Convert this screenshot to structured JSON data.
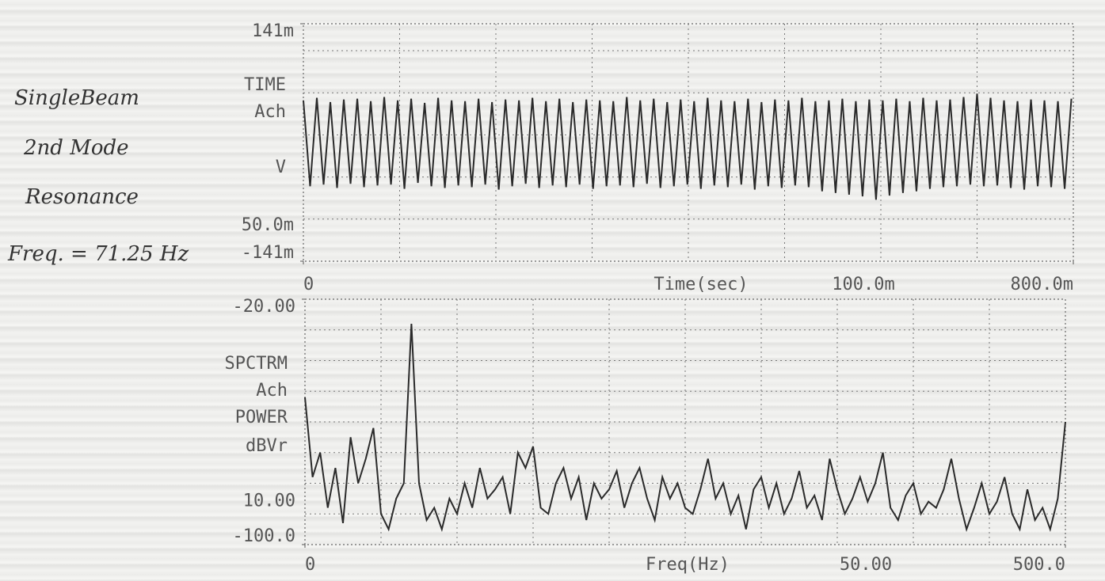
{
  "chart_data": [
    {
      "type": "line",
      "annotations": [
        "SingleBeam",
        "2nd Mode",
        "Resonance",
        "Freq. = 71.25 Hz"
      ],
      "y_labels": [
        "TIME",
        "Ach",
        "V"
      ],
      "x_label": "Time(sec)",
      "x_division": {
        "value": 0.1,
        "label": "100.0m"
      },
      "y_division": {
        "value": 0.05,
        "label": "50.0m"
      },
      "xlim": [
        0,
        0.8
      ],
      "ylim": [
        -0.141,
        0.141
      ],
      "xticks": [
        0,
        {
          "value": 0.8,
          "label": "800.0m"
        }
      ],
      "yticks": [
        {
          "value": 0.141,
          "label": "141m"
        },
        {
          "value": -0.141,
          "label": "-141m"
        }
      ],
      "grid": true,
      "series": [
        {
          "color": "#2a2a2a",
          "x": [
            0,
            0.007,
            0.014,
            0.021,
            0.028,
            0.035,
            0.042,
            0.049,
            0.056,
            0.063,
            0.07,
            0.077,
            0.084,
            0.091,
            0.098,
            0.105,
            0.112,
            0.119,
            0.126,
            0.133,
            0.14,
            0.147,
            0.154,
            0.161,
            0.168,
            0.175,
            0.182,
            0.189,
            0.196,
            0.203,
            0.21,
            0.217,
            0.224,
            0.231,
            0.238,
            0.245,
            0.252,
            0.259,
            0.266,
            0.273,
            0.28,
            0.287,
            0.294,
            0.301,
            0.308,
            0.315,
            0.322,
            0.329,
            0.336,
            0.343,
            0.35,
            0.357,
            0.364,
            0.371,
            0.378,
            0.385,
            0.392,
            0.399,
            0.406,
            0.413,
            0.42,
            0.427,
            0.434,
            0.441,
            0.448,
            0.455,
            0.462,
            0.469,
            0.476,
            0.483,
            0.49,
            0.497,
            0.504,
            0.511,
            0.518,
            0.525,
            0.532,
            0.539,
            0.546,
            0.553,
            0.56,
            0.567,
            0.574,
            0.581,
            0.588,
            0.595,
            0.602,
            0.609,
            0.616,
            0.623,
            0.63,
            0.637,
            0.644,
            0.651,
            0.658,
            0.665,
            0.672,
            0.679,
            0.686,
            0.693,
            0.7,
            0.707,
            0.714,
            0.721,
            0.728,
            0.735,
            0.742,
            0.749,
            0.756,
            0.763,
            0.77,
            0.777,
            0.784,
            0.791,
            0.798
          ],
          "values": [
            0.05,
            -0.052,
            0.053,
            -0.05,
            0.048,
            -0.054,
            0.051,
            -0.049,
            0.052,
            -0.053,
            0.049,
            -0.051,
            0.054,
            -0.05,
            0.05,
            -0.055,
            0.052,
            -0.048,
            0.047,
            -0.052,
            0.053,
            -0.054,
            0.05,
            -0.051,
            0.049,
            -0.053,
            0.052,
            -0.05,
            0.048,
            -0.056,
            0.051,
            -0.052,
            0.05,
            -0.049,
            0.053,
            -0.054,
            0.049,
            -0.051,
            0.052,
            -0.053,
            0.048,
            -0.05,
            0.051,
            -0.055,
            0.05,
            -0.052,
            0.049,
            -0.051,
            0.054,
            -0.053,
            0.05,
            -0.049,
            0.052,
            -0.054,
            0.048,
            -0.052,
            0.051,
            -0.05,
            0.049,
            -0.055,
            0.053,
            -0.051,
            0.05,
            -0.053,
            0.049,
            -0.05,
            0.052,
            -0.056,
            0.048,
            -0.052,
            0.051,
            -0.054,
            0.05,
            -0.051,
            0.053,
            -0.053,
            0.049,
            -0.058,
            0.05,
            -0.06,
            0.052,
            -0.062,
            0.049,
            -0.064,
            0.051,
            -0.068,
            0.05,
            -0.063,
            0.052,
            -0.06,
            0.049,
            -0.058,
            0.053,
            -0.055,
            0.05,
            -0.053,
            0.051,
            -0.052,
            0.054,
            -0.05,
            0.058,
            -0.052,
            0.053,
            -0.051,
            0.05,
            -0.054,
            0.049,
            -0.056,
            0.051,
            -0.052,
            0.05,
            -0.053,
            0.049,
            -0.055,
            0.052
          ]
        }
      ]
    },
    {
      "type": "line",
      "y_labels": [
        "SPCTRM",
        "Ach",
        "POWER",
        "dBVr"
      ],
      "x_label": "Freq(Hz)",
      "x_division": {
        "value": 50,
        "label": "50.00"
      },
      "y_division": {
        "value": 10,
        "label": "10.00"
      },
      "xlim": [
        0,
        500
      ],
      "ylim": [
        -100,
        -20
      ],
      "xticks": [
        0,
        {
          "value": 500,
          "label": "500.0"
        }
      ],
      "yticks": [
        {
          "value": -20,
          "label": "-20.00"
        },
        {
          "value": -100,
          "label": "-100.0"
        }
      ],
      "grid": true,
      "series": [
        {
          "color": "#2a2a2a",
          "x": [
            0,
            5,
            10,
            15,
            20,
            25,
            30,
            35,
            40,
            45,
            50,
            55,
            60,
            65,
            70,
            75,
            80,
            85,
            90,
            95,
            100,
            105,
            110,
            115,
            120,
            125,
            130,
            135,
            140,
            145,
            150,
            155,
            160,
            165,
            170,
            175,
            180,
            185,
            190,
            195,
            200,
            205,
            210,
            215,
            220,
            225,
            230,
            235,
            240,
            245,
            250,
            255,
            260,
            265,
            270,
            275,
            280,
            285,
            290,
            295,
            300,
            305,
            310,
            315,
            320,
            325,
            330,
            335,
            340,
            345,
            350,
            355,
            360,
            365,
            370,
            375,
            380,
            385,
            390,
            395,
            400,
            405,
            410,
            415,
            420,
            425,
            430,
            435,
            440,
            445,
            450,
            455,
            460,
            465,
            470,
            475,
            480,
            485,
            490,
            495,
            500
          ],
          "values": [
            -52,
            -78,
            -70,
            -88,
            -75,
            -93,
            -65,
            -80,
            -72,
            -62,
            -90,
            -95,
            -85,
            -80,
            -28,
            -80,
            -92,
            -88,
            -95,
            -85,
            -90,
            -80,
            -88,
            -75,
            -85,
            -82,
            -78,
            -90,
            -70,
            -75,
            -68,
            -88,
            -90,
            -80,
            -75,
            -85,
            -78,
            -92,
            -80,
            -85,
            -82,
            -76,
            -88,
            -80,
            -75,
            -85,
            -92,
            -78,
            -85,
            -80,
            -88,
            -90,
            -82,
            -72,
            -85,
            -80,
            -90,
            -84,
            -95,
            -82,
            -78,
            -88,
            -80,
            -90,
            -85,
            -76,
            -88,
            -84,
            -92,
            -72,
            -82,
            -90,
            -85,
            -78,
            -86,
            -80,
            -70,
            -88,
            -92,
            -84,
            -80,
            -90,
            -86,
            -88,
            -82,
            -72,
            -85,
            -95,
            -88,
            -80,
            -90,
            -86,
            -78,
            -90,
            -95,
            -82,
            -92,
            -88,
            -95,
            -85,
            -60
          ]
        }
      ]
    }
  ]
}
